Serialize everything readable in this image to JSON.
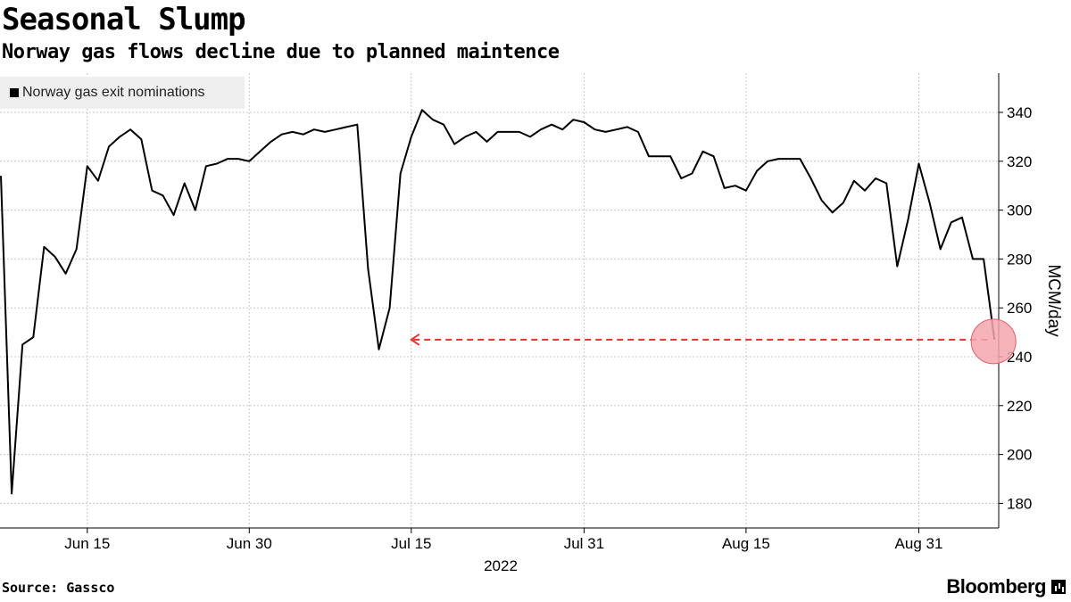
{
  "header": {
    "title": "Seasonal Slump",
    "subtitle": "Norway gas flows decline due to planned maintence"
  },
  "legend": {
    "label": "Norway gas exit nominations"
  },
  "footer": {
    "source": "Source: Gassco",
    "brand": "Bloomberg"
  },
  "colors": {
    "line": "#000000",
    "grid": "#c8c8c8",
    "arrow": "#e8312f",
    "highlight_fill": "#f4a6ad",
    "highlight_stroke": "#e06070"
  },
  "chart_data": {
    "type": "line",
    "title": "Seasonal Slump",
    "subtitle": "Norway gas flows decline due to planned maintence",
    "ylabel": "MCM/day",
    "xlabel": "2022",
    "ylim": [
      170,
      355
    ],
    "y_ticks": [
      180,
      200,
      220,
      240,
      260,
      280,
      300,
      320,
      340
    ],
    "x_ticks": [
      {
        "date": "2022-06-15",
        "label": "Jun 15"
      },
      {
        "date": "2022-06-30",
        "label": "Jun 30"
      },
      {
        "date": "2022-07-15",
        "label": "Jul 15"
      },
      {
        "date": "2022-07-31",
        "label": "Jul 31"
      },
      {
        "date": "2022-08-15",
        "label": "Aug 15"
      },
      {
        "date": "2022-08-31",
        "label": "Aug 31"
      }
    ],
    "year_label": "2022",
    "grid": true,
    "legend_position": "top-left",
    "series": [
      {
        "name": "Norway gas exit nominations",
        "x": [
          "2022-06-07",
          "2022-06-08",
          "2022-06-09",
          "2022-06-10",
          "2022-06-11",
          "2022-06-12",
          "2022-06-13",
          "2022-06-14",
          "2022-06-15",
          "2022-06-16",
          "2022-06-17",
          "2022-06-18",
          "2022-06-19",
          "2022-06-20",
          "2022-06-21",
          "2022-06-22",
          "2022-06-23",
          "2022-06-24",
          "2022-06-25",
          "2022-06-26",
          "2022-06-27",
          "2022-06-28",
          "2022-06-29",
          "2022-06-30",
          "2022-07-01",
          "2022-07-02",
          "2022-07-03",
          "2022-07-04",
          "2022-07-05",
          "2022-07-06",
          "2022-07-07",
          "2022-07-08",
          "2022-07-09",
          "2022-07-10",
          "2022-07-11",
          "2022-07-12",
          "2022-07-13",
          "2022-07-14",
          "2022-07-15",
          "2022-07-16",
          "2022-07-17",
          "2022-07-18",
          "2022-07-19",
          "2022-07-20",
          "2022-07-21",
          "2022-07-22",
          "2022-07-23",
          "2022-07-24",
          "2022-07-25",
          "2022-07-26",
          "2022-07-27",
          "2022-07-28",
          "2022-07-29",
          "2022-07-30",
          "2022-07-31",
          "2022-08-01",
          "2022-08-02",
          "2022-08-03",
          "2022-08-04",
          "2022-08-05",
          "2022-08-06",
          "2022-08-07",
          "2022-08-08",
          "2022-08-09",
          "2022-08-10",
          "2022-08-11",
          "2022-08-12",
          "2022-08-13",
          "2022-08-14",
          "2022-08-15",
          "2022-08-16",
          "2022-08-17",
          "2022-08-18",
          "2022-08-19",
          "2022-08-20",
          "2022-08-21",
          "2022-08-22",
          "2022-08-23",
          "2022-08-24",
          "2022-08-25",
          "2022-08-26",
          "2022-08-27",
          "2022-08-28",
          "2022-08-29",
          "2022-08-30",
          "2022-08-31",
          "2022-09-01",
          "2022-09-02",
          "2022-09-03",
          "2022-09-04",
          "2022-09-05",
          "2022-09-06",
          "2022-09-07"
        ],
        "values": [
          314,
          184,
          245,
          248,
          285,
          281,
          274,
          284,
          318,
          312,
          326,
          330,
          333,
          329,
          308,
          306,
          298,
          311,
          300,
          318,
          319,
          321,
          321,
          320,
          324,
          328,
          331,
          332,
          331,
          333,
          332,
          333,
          334,
          335,
          276,
          243,
          260,
          315,
          330,
          341,
          337,
          335,
          327,
          330,
          332,
          328,
          332,
          332,
          332,
          330,
          333,
          335,
          333,
          337,
          336,
          333,
          332,
          333,
          334,
          332,
          322,
          322,
          322,
          313,
          315,
          324,
          322,
          309,
          310,
          308,
          316,
          320,
          321,
          321,
          321,
          313,
          304,
          299,
          303,
          312,
          308,
          313,
          311,
          277,
          296,
          319,
          303,
          284,
          295,
          297,
          280,
          280,
          247
        ]
      }
    ],
    "annotations": [
      {
        "type": "arrow",
        "from_date": "2022-09-07",
        "to_date": "2022-07-15",
        "y": 247
      },
      {
        "type": "highlight-circle",
        "date": "2022-09-07",
        "y": 247
      }
    ]
  }
}
